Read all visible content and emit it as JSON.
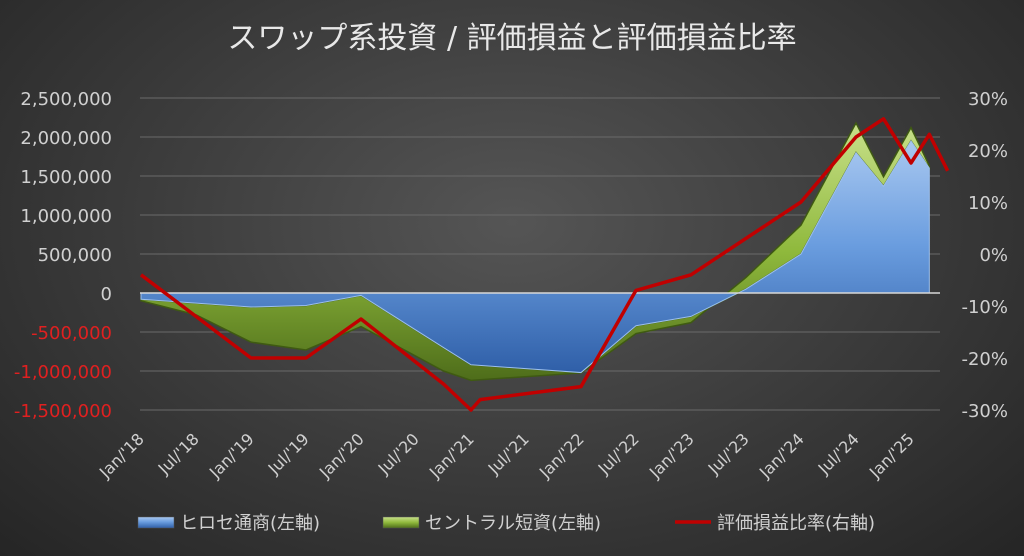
{
  "chart_data": {
    "type": "area",
    "title": "スワップ系投資 / 評価損益と評価損益比率",
    "x_ticks": [
      "Jan/'18",
      "Jul/'18",
      "Jan/'19",
      "Jul/'19",
      "Jan/'20",
      "Jul/'20",
      "Jan/'21",
      "Jul/'21",
      "Jan/'22",
      "Jul/'22",
      "Jan/'23",
      "Jul/'23",
      "Jan/'24",
      "Jul/'24",
      "Jan/'25"
    ],
    "y_left": {
      "ticks": [
        2500000,
        2000000,
        1500000,
        1000000,
        500000,
        0,
        -500000,
        -1000000,
        -1500000
      ],
      "tick_labels": [
        "2,500,000",
        "2,000,000",
        "1,500,000",
        "1,000,000",
        "500,000",
        "0",
        "-500,000",
        "-1,000,000",
        "-1,500,000"
      ],
      "range": [
        -1500000,
        2500000
      ]
    },
    "y_right": {
      "ticks": [
        30,
        20,
        10,
        0,
        -10,
        -20,
        -30
      ],
      "tick_labels": [
        "30%",
        "20%",
        "10%",
        "0%",
        "-10%",
        "-20%",
        "-30%"
      ],
      "range": [
        -30,
        30
      ]
    },
    "series": [
      {
        "name": "ヒロセ通商(左軸)",
        "axis": "left",
        "style": "area",
        "color": "#5b8fd6",
        "points": [
          [
            "2018-01",
            -80000
          ],
          [
            "2018-07",
            -130000
          ],
          [
            "2019-01",
            -180000
          ],
          [
            "2019-07",
            -160000
          ],
          [
            "2020-01",
            -30000
          ],
          [
            "2020-10",
            -700000
          ],
          [
            "2021-01",
            -920000
          ],
          [
            "2022-01",
            -1020000
          ],
          [
            "2022-07",
            -420000
          ],
          [
            "2023-01",
            -300000
          ],
          [
            "2023-07",
            50000
          ],
          [
            "2024-01",
            500000
          ],
          [
            "2024-07",
            1800000
          ],
          [
            "2024-10",
            1370000
          ],
          [
            "2025-01",
            1950000
          ],
          [
            "2025-03",
            1600000
          ]
        ]
      },
      {
        "name": "セントラル短資(左軸)",
        "axis": "left",
        "style": "stacked-area",
        "color": "#8fb93c",
        "points": [
          [
            "2018-01",
            -20000
          ],
          [
            "2018-07",
            -150000
          ],
          [
            "2019-01",
            -450000
          ],
          [
            "2019-07",
            -570000
          ],
          [
            "2020-01",
            -400000
          ],
          [
            "2020-10",
            -300000
          ],
          [
            "2021-01",
            -200000
          ],
          [
            "2022-01",
            -5000
          ],
          [
            "2022-07",
            -100000
          ],
          [
            "2023-01",
            -80000
          ],
          [
            "2023-07",
            150000
          ],
          [
            "2024-01",
            370000
          ],
          [
            "2024-07",
            380000
          ],
          [
            "2024-10",
            120000
          ],
          [
            "2025-01",
            170000
          ],
          [
            "2025-03",
            30000
          ]
        ]
      },
      {
        "name": "評価損益比率(右軸)",
        "axis": "right",
        "style": "line",
        "color": "#c00000",
        "points": [
          [
            "2018-01",
            -4
          ],
          [
            "2018-07",
            -12
          ],
          [
            "2019-01",
            -20
          ],
          [
            "2019-07",
            -20
          ],
          [
            "2020-01",
            -12.5
          ],
          [
            "2020-10",
            -25
          ],
          [
            "2021-01",
            -30
          ],
          [
            "2021-02",
            -28
          ],
          [
            "2022-01",
            -25.5
          ],
          [
            "2022-07",
            -7
          ],
          [
            "2023-01",
            -4
          ],
          [
            "2024-01",
            10
          ],
          [
            "2024-07",
            22.5
          ],
          [
            "2024-10",
            26
          ],
          [
            "2025-01",
            17.5
          ],
          [
            "2025-03",
            23
          ],
          [
            "2025-05",
            16
          ]
        ]
      }
    ],
    "legend_position": "bottom",
    "grid": true,
    "negative_tick_color": "#e02020",
    "text_color": "#d0d0d0"
  }
}
